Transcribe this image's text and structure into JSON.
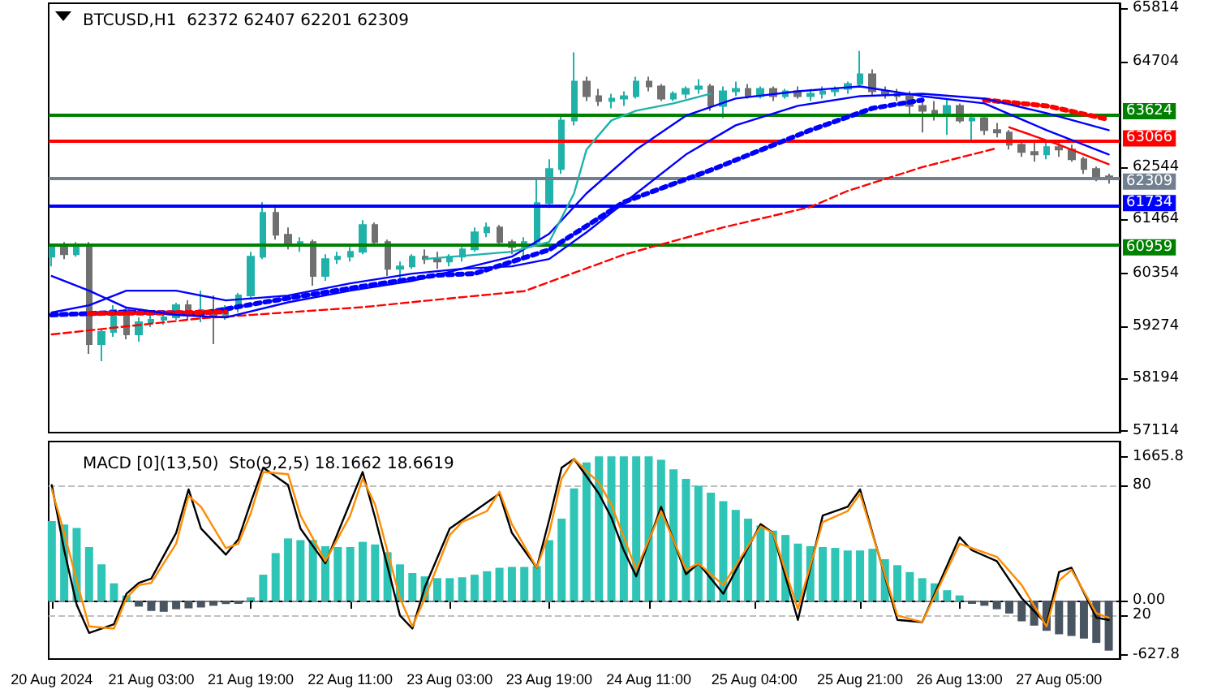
{
  "chart_data": [
    {
      "type": "candlestick",
      "title": "BTCUSD,H1  62372 62407 62201 62309",
      "marker": "none",
      "tick_labels": "y",
      "xlim": [
        "2024-08-20T10:30",
        "2024-08-27T14:45"
      ],
      "ylim": [
        57080,
        65910
      ],
      "yticks": [
        57114,
        58194,
        59274,
        60354,
        61464,
        62544,
        64704,
        65814
      ],
      "x": [
        "2024-08-20T11:00",
        "2024-08-20T13:00",
        "2024-08-20T15:00",
        "2024-08-20T17:00",
        "2024-08-20T19:00",
        "2024-08-20T21:00",
        "2024-08-20T23:00",
        "2024-08-21T01:00",
        "2024-08-21T03:00",
        "2024-08-21T05:00",
        "2024-08-21T07:00",
        "2024-08-21T09:00",
        "2024-08-21T11:00",
        "2024-08-21T13:00",
        "2024-08-21T15:00",
        "2024-08-21T17:00",
        "2024-08-21T19:00",
        "2024-08-21T21:00",
        "2024-08-21T23:00",
        "2024-08-22T01:00",
        "2024-08-22T03:00",
        "2024-08-22T05:00",
        "2024-08-22T07:00",
        "2024-08-22T09:00",
        "2024-08-22T11:00",
        "2024-08-22T13:00",
        "2024-08-22T15:00",
        "2024-08-22T17:00",
        "2024-08-22T19:00",
        "2024-08-22T21:00",
        "2024-08-22T23:00",
        "2024-08-23T01:00",
        "2024-08-23T03:00",
        "2024-08-23T05:00",
        "2024-08-23T07:00",
        "2024-08-23T09:00",
        "2024-08-23T11:00",
        "2024-08-23T13:00",
        "2024-08-23T15:00",
        "2024-08-23T17:00",
        "2024-08-23T19:00",
        "2024-08-23T21:00",
        "2024-08-23T23:00",
        "2024-08-24T01:00",
        "2024-08-24T03:00",
        "2024-08-24T05:00",
        "2024-08-24T07:00",
        "2024-08-24T09:00",
        "2024-08-24T11:00",
        "2024-08-24T13:00",
        "2024-08-24T15:00",
        "2024-08-24T17:00",
        "2024-08-24T19:00",
        "2024-08-24T21:00",
        "2024-08-24T23:00",
        "2024-08-25T01:00",
        "2024-08-25T03:00",
        "2024-08-25T05:00",
        "2024-08-25T07:00",
        "2024-08-25T09:00",
        "2024-08-25T11:00",
        "2024-08-25T13:00",
        "2024-08-25T15:00",
        "2024-08-25T17:00",
        "2024-08-25T19:00",
        "2024-08-25T21:00",
        "2024-08-25T23:00",
        "2024-08-26T01:00",
        "2024-08-26T03:00",
        "2024-08-26T05:00",
        "2024-08-26T07:00",
        "2024-08-26T09:00",
        "2024-08-26T11:00",
        "2024-08-26T13:00",
        "2024-08-26T15:00",
        "2024-08-26T17:00",
        "2024-08-26T19:00",
        "2024-08-26T21:00",
        "2024-08-26T23:00",
        "2024-08-27T01:00",
        "2024-08-27T03:00",
        "2024-08-27T05:00",
        "2024-08-27T07:00",
        "2024-08-27T09:00",
        "2024-08-27T11:00",
        "2024-08-27T13:00"
      ],
      "ohlc": [
        [
          60700,
          60950,
          60500,
          60900
        ],
        [
          60900,
          61000,
          60650,
          60750
        ],
        [
          60750,
          61000,
          60700,
          60950
        ],
        [
          60950,
          61000,
          58700,
          58900
        ],
        [
          58900,
          59200,
          58550,
          59150
        ],
        [
          59150,
          59700,
          59050,
          59600
        ],
        [
          59600,
          59650,
          59000,
          59100
        ],
        [
          59100,
          59450,
          58950,
          59350
        ],
        [
          59350,
          59500,
          59250,
          59400
        ],
        [
          59400,
          59550,
          59300,
          59450
        ],
        [
          59450,
          59750,
          59400,
          59700
        ],
        [
          59700,
          59800,
          59400,
          59500
        ],
        [
          59500,
          60000,
          59350,
          59600
        ],
        [
          59600,
          59900,
          58900,
          59450
        ],
        [
          59450,
          59700,
          59400,
          59650
        ],
        [
          59650,
          59950,
          59550,
          59900
        ],
        [
          59900,
          60800,
          59850,
          60700
        ],
        [
          60700,
          61820,
          60650,
          61600
        ],
        [
          61600,
          61700,
          61050,
          61150
        ],
        [
          61150,
          61300,
          60850,
          60950
        ],
        [
          60950,
          61100,
          60800,
          61000
        ],
        [
          61000,
          61050,
          60100,
          60300
        ],
        [
          60300,
          60750,
          60200,
          60650
        ],
        [
          60650,
          60800,
          60550,
          60700
        ],
        [
          60700,
          60900,
          60600,
          60800
        ],
        [
          60800,
          61450,
          60750,
          61350
        ],
        [
          61350,
          61400,
          60950,
          61000
        ],
        [
          61000,
          61050,
          60300,
          60450
        ],
        [
          60450,
          60600,
          60200,
          60500
        ],
        [
          60500,
          60750,
          60450,
          60700
        ],
        [
          60700,
          60850,
          60550,
          60650
        ],
        [
          60650,
          60800,
          60450,
          60600
        ],
        [
          60600,
          60750,
          60500,
          60700
        ],
        [
          60700,
          60900,
          60600,
          60850
        ],
        [
          60850,
          61300,
          60800,
          61200
        ],
        [
          61200,
          61400,
          61100,
          61300
        ],
        [
          61300,
          61350,
          60950,
          61000
        ],
        [
          61000,
          61050,
          60750,
          60900
        ],
        [
          60900,
          61100,
          60700,
          61000
        ],
        [
          61000,
          62340,
          60950,
          61800
        ],
        [
          61800,
          62700,
          61700,
          62500
        ],
        [
          62500,
          63600,
          62400,
          63500
        ],
        [
          63500,
          64900,
          63400,
          64300
        ],
        [
          64300,
          64400,
          63900,
          64000
        ],
        [
          64000,
          64150,
          63800,
          63900
        ],
        [
          63900,
          64050,
          63750,
          63950
        ],
        [
          63950,
          64100,
          63800,
          64000
        ],
        [
          64000,
          64400,
          63950,
          64300
        ],
        [
          64300,
          64400,
          64100,
          64200
        ],
        [
          64200,
          64250,
          63900,
          63950
        ],
        [
          63950,
          64100,
          63900,
          64050
        ],
        [
          64050,
          64200,
          63950,
          64150
        ],
        [
          64150,
          64350,
          64050,
          64200
        ],
        [
          64200,
          64250,
          63700,
          63800
        ],
        [
          63800,
          64200,
          63550,
          64100
        ],
        [
          64100,
          64300,
          64000,
          64150
        ],
        [
          64150,
          64250,
          63950,
          64000
        ],
        [
          64000,
          64200,
          63950,
          64150
        ],
        [
          64150,
          64200,
          63900,
          64000
        ],
        [
          64000,
          64150,
          63950,
          64100
        ],
        [
          64100,
          64200,
          63950,
          64000
        ],
        [
          64000,
          64150,
          63900,
          64050
        ],
        [
          64050,
          64200,
          63950,
          64100
        ],
        [
          64100,
          64200,
          64000,
          64150
        ],
        [
          64150,
          64300,
          64050,
          64250
        ],
        [
          64250,
          64930,
          64200,
          64450
        ],
        [
          64450,
          64550,
          64000,
          64100
        ],
        [
          64100,
          64200,
          63950,
          64050
        ],
        [
          64050,
          64150,
          63900,
          64000
        ],
        [
          64000,
          64100,
          63600,
          63800
        ],
        [
          63800,
          63950,
          63250,
          63700
        ],
        [
          63700,
          63900,
          63500,
          63650
        ],
        [
          63650,
          63950,
          63200,
          63800
        ],
        [
          63800,
          63850,
          63450,
          63500
        ],
        [
          63500,
          63650,
          63100,
          63550
        ],
        [
          63550,
          63600,
          63200,
          63300
        ],
        [
          63300,
          63450,
          63150,
          63250
        ],
        [
          63250,
          63300,
          62900,
          63000
        ],
        [
          63000,
          63100,
          62750,
          62850
        ],
        [
          62850,
          63050,
          62650,
          62800
        ],
        [
          62800,
          63100,
          62700,
          62950
        ],
        [
          62950,
          63050,
          62750,
          62900
        ],
        [
          62900,
          63000,
          62650,
          62700
        ],
        [
          62700,
          62750,
          62400,
          62500
        ],
        [
          62500,
          62550,
          62250,
          62350
        ],
        [
          62350,
          62407,
          62201,
          62309
        ]
      ],
      "colors": [
        "#20b2aa",
        "#707070",
        "#20b2aa",
        "#707070",
        "#20b2aa",
        "#20b2aa",
        "#707070",
        "#20b2aa",
        "#20b2aa",
        "#20b2aa",
        "#20b2aa",
        "#707070",
        "#20b2aa",
        "#707070",
        "#20b2aa",
        "#20b2aa",
        "#20b2aa",
        "#20b2aa",
        "#707070",
        "#707070",
        "#20b2aa",
        "#707070",
        "#20b2aa",
        "#20b2aa",
        "#20b2aa",
        "#20b2aa",
        "#707070",
        "#707070",
        "#20b2aa",
        "#20b2aa",
        "#707070",
        "#707070",
        "#20b2aa",
        "#20b2aa",
        "#20b2aa",
        "#20b2aa",
        "#707070",
        "#707070",
        "#20b2aa",
        "#20b2aa",
        "#20b2aa",
        "#20b2aa",
        "#20b2aa",
        "#707070",
        "#707070",
        "#20b2aa",
        "#20b2aa",
        "#20b2aa",
        "#707070",
        "#707070",
        "#20b2aa",
        "#20b2aa",
        "#20b2aa",
        "#707070",
        "#20b2aa",
        "#20b2aa",
        "#707070",
        "#20b2aa",
        "#707070",
        "#20b2aa",
        "#707070",
        "#20b2aa",
        "#20b2aa",
        "#20b2aa",
        "#20b2aa",
        "#20b2aa",
        "#707070",
        "#707070",
        "#707070",
        "#707070",
        "#707070",
        "#707070",
        "#20b2aa",
        "#707070",
        "#20b2aa",
        "#707070",
        "#707070",
        "#707070",
        "#707070",
        "#707070",
        "#20b2aa",
        "#707070",
        "#707070",
        "#707070",
        "#707070",
        "#707070"
      ],
      "series": [
        {
          "type": "line",
          "color": "#0000ff",
          "line_style": "dotted",
          "x": [
            "2024-08-20T11:00",
            "2024-08-20T23:00",
            "2024-08-21T11:00",
            "2024-08-21T21:00",
            "2024-08-22T13:00",
            "2024-08-23T01:00",
            "2024-08-23T07:00",
            "2024-08-23T19:00",
            "2024-08-24T07:00",
            "2024-08-24T21:00",
            "2024-08-25T13:00",
            "2024-08-25T23:00",
            "2024-08-26T07:00"
          ],
          "values": [
            59500,
            59560,
            59530,
            59760,
            60090,
            60320,
            60350,
            60840,
            61820,
            62480,
            63300,
            63750,
            63920
          ]
        },
        {
          "type": "line",
          "color": "#ff0000",
          "line_style": "dashed",
          "x": [
            "2024-08-20T11:00",
            "2024-08-21T11:00",
            "2024-08-22T13:00",
            "2024-08-22T23:00",
            "2024-08-23T15:00",
            "2024-08-24T07:00",
            "2024-08-24T23:00",
            "2024-08-25T13:00",
            "2024-08-25T19:00",
            "2024-08-26T07:00",
            "2024-08-26T19:00"
          ],
          "values": [
            59100,
            59430,
            59660,
            59790,
            59990,
            60740,
            61300,
            61720,
            62050,
            62540,
            62930
          ]
        },
        {
          "type": "line",
          "color": "#ff0000",
          "line_style": "dotted",
          "x": [
            "2024-08-20T17:00",
            "2024-08-21T03:00",
            "2024-08-21T15:00",
            "2024-08-21T17:00",
            "2024-08-26T17:00",
            "2024-08-27T03:00",
            "2024-08-27T13:00"
          ],
          "values": [
            59530,
            59540,
            59560,
            null,
            63920,
            63800,
            63520
          ]
        },
        {
          "type": "line",
          "color": "#0000ff",
          "line_style": "solid",
          "x": [
            "2024-08-20T11:00",
            "2024-08-20T17:00",
            "2024-08-20T23:00",
            "2024-08-21T07:00",
            "2024-08-21T15:00",
            "2024-08-22T01:00",
            "2024-08-22T11:00",
            "2024-08-22T21:00",
            "2024-08-23T05:00",
            "2024-08-23T13:00",
            "2024-08-23T19:00",
            "2024-08-24T01:00",
            "2024-08-24T09:00",
            "2024-08-24T17:00",
            "2024-08-25T01:00",
            "2024-08-25T11:00",
            "2024-08-25T21:00",
            "2024-08-26T07:00",
            "2024-08-26T17:00",
            "2024-08-27T03:00",
            "2024-08-27T13:00"
          ],
          "values": [
            60300,
            60000,
            59650,
            59500,
            59450,
            59760,
            60000,
            60200,
            60450,
            60700,
            61170,
            62000,
            62900,
            63600,
            63950,
            64100,
            64200,
            64000,
            63850,
            63300,
            62800
          ]
        },
        {
          "type": "line",
          "color": "#0000ff",
          "line_style": "solid",
          "x": [
            "2024-08-20T11:00",
            "2024-08-20T17:00",
            "2024-08-20T23:00",
            "2024-08-21T07:00",
            "2024-08-21T15:00",
            "2024-08-22T01:00",
            "2024-08-22T11:00",
            "2024-08-22T21:00",
            "2024-08-23T05:00",
            "2024-08-23T13:00",
            "2024-08-23T19:00",
            "2024-08-24T01:00",
            "2024-08-24T09:00",
            "2024-08-24T17:00",
            "2024-08-25T01:00",
            "2024-08-25T11:00",
            "2024-08-25T21:00",
            "2024-08-26T07:00",
            "2024-08-26T17:00",
            "2024-08-27T03:00",
            "2024-08-27T13:00"
          ],
          "values": [
            59550,
            59700,
            60000,
            60000,
            59800,
            59900,
            60150,
            60350,
            60450,
            60500,
            60650,
            61200,
            62000,
            62800,
            63400,
            63800,
            64000,
            64050,
            63950,
            63650,
            63300
          ]
        },
        {
          "type": "line",
          "color": "#20b2aa",
          "line_style": "solid",
          "x": [
            "2024-08-22T23:00",
            "2024-08-23T13:00",
            "2024-08-23T19:00",
            "2024-08-23T23:00",
            "2024-08-24T01:00",
            "2024-08-24T05:00",
            "2024-08-24T09:00",
            "2024-08-24T15:00",
            "2024-08-24T21:00"
          ],
          "values": [
            60650,
            60800,
            61000,
            62000,
            62900,
            63500,
            63700,
            63850,
            64050
          ]
        },
        {
          "type": "line",
          "color": "#ff0000",
          "line_style": "solid",
          "x": [
            "2024-08-26T21:00",
            "2024-08-27T05:00",
            "2024-08-27T13:00"
          ],
          "values": [
            63360,
            63000,
            62600
          ]
        }
      ],
      "ref_lines": [
        {
          "axis": "y",
          "value": 63624,
          "label": "63624",
          "color": "#008000"
        },
        {
          "axis": "y",
          "value": 63066,
          "label": "63066",
          "color": "#ff0000"
        },
        {
          "axis": "y",
          "value": 62309,
          "label": "62309",
          "color": "#708090"
        },
        {
          "axis": "y",
          "value": 61734,
          "label": "61734",
          "color": "#0000ff"
        },
        {
          "axis": "y",
          "value": 60959,
          "label": "60959",
          "color": "#008000"
        }
      ]
    },
    {
      "type": "bar",
      "title": "MACD [0](13,50)  Sto(9,2,5) 18.1662 18.6619",
      "marker": "none",
      "xlim": [
        "2024-08-20T10:30",
        "2024-08-27T14:45"
      ],
      "xticks": [
        {
          "value": "2024-08-20T11:00",
          "label": "20 Aug 2024"
        },
        {
          "value": "2024-08-21T03:00",
          "label": "21 Aug 03:00"
        },
        {
          "value": "2024-08-21T19:00",
          "label": "21 Aug 19:00"
        },
        {
          "value": "2024-08-22T11:00",
          "label": "22 Aug 11:00"
        },
        {
          "value": "2024-08-23T03:00",
          "label": "23 Aug 03:00"
        },
        {
          "value": "2024-08-23T19:00",
          "label": "23 Aug 19:00"
        },
        {
          "value": "2024-08-24T11:00",
          "label": "24 Aug 11:00"
        },
        {
          "value": "2024-08-25T04:00",
          "label": "25 Aug 04:00"
        },
        {
          "value": "2024-08-25T21:00",
          "label": "25 Aug 21:00"
        },
        {
          "value": "2024-08-26T13:00",
          "label": "26 Aug 13:00"
        },
        {
          "value": "2024-08-27T05:00",
          "label": "27 Aug 05:00"
        }
      ],
      "ylim": [
        -677,
        1842
      ],
      "yticks": [
        1665.8,
        {
          "value": 0,
          "label": "0.00"
        },
        -627.8
      ],
      "y2lim": [
        0,
        100
      ],
      "y2ticks": [
        80,
        20
      ],
      "x": [
        "2024-08-20T11:00",
        "2024-08-20T13:00",
        "2024-08-20T15:00",
        "2024-08-20T17:00",
        "2024-08-20T19:00",
        "2024-08-20T21:00",
        "2024-08-20T23:00",
        "2024-08-21T01:00",
        "2024-08-21T03:00",
        "2024-08-21T05:00",
        "2024-08-21T07:00",
        "2024-08-21T09:00",
        "2024-08-21T11:00",
        "2024-08-21T13:00",
        "2024-08-21T15:00",
        "2024-08-21T17:00",
        "2024-08-21T19:00",
        "2024-08-21T21:00",
        "2024-08-21T23:00",
        "2024-08-22T01:00",
        "2024-08-22T03:00",
        "2024-08-22T05:00",
        "2024-08-22T07:00",
        "2024-08-22T09:00",
        "2024-08-22T11:00",
        "2024-08-22T13:00",
        "2024-08-22T15:00",
        "2024-08-22T17:00",
        "2024-08-22T19:00",
        "2024-08-22T21:00",
        "2024-08-22T23:00",
        "2024-08-23T01:00",
        "2024-08-23T03:00",
        "2024-08-23T05:00",
        "2024-08-23T07:00",
        "2024-08-23T09:00",
        "2024-08-23T11:00",
        "2024-08-23T13:00",
        "2024-08-23T15:00",
        "2024-08-23T17:00",
        "2024-08-23T19:00",
        "2024-08-23T21:00",
        "2024-08-23T23:00",
        "2024-08-24T01:00",
        "2024-08-24T03:00",
        "2024-08-24T05:00",
        "2024-08-24T07:00",
        "2024-08-24T09:00",
        "2024-08-24T11:00",
        "2024-08-24T13:00",
        "2024-08-24T15:00",
        "2024-08-24T17:00",
        "2024-08-24T19:00",
        "2024-08-24T21:00",
        "2024-08-24T23:00",
        "2024-08-25T01:00",
        "2024-08-25T03:00",
        "2024-08-25T05:00",
        "2024-08-25T07:00",
        "2024-08-25T09:00",
        "2024-08-25T11:00",
        "2024-08-25T13:00",
        "2024-08-25T15:00",
        "2024-08-25T17:00",
        "2024-08-25T19:00",
        "2024-08-25T21:00",
        "2024-08-25T23:00",
        "2024-08-26T01:00",
        "2024-08-26T03:00",
        "2024-08-26T05:00",
        "2024-08-26T07:00",
        "2024-08-26T09:00",
        "2024-08-26T11:00",
        "2024-08-26T13:00",
        "2024-08-26T15:00",
        "2024-08-26T17:00",
        "2024-08-26T19:00",
        "2024-08-26T21:00",
        "2024-08-26T23:00",
        "2024-08-27T01:00",
        "2024-08-27T03:00",
        "2024-08-27T05:00",
        "2024-08-27T07:00",
        "2024-08-27T09:00",
        "2024-08-27T11:00",
        "2024-08-27T13:00"
      ],
      "values": [
        920,
        880,
        840,
        620,
        420,
        200,
        60,
        -70,
        -120,
        -130,
        -100,
        -90,
        -80,
        -60,
        -40,
        -20,
        30,
        300,
        550,
        720,
        700,
        700,
        630,
        620,
        620,
        680,
        650,
        560,
        420,
        320,
        280,
        260,
        260,
        270,
        300,
        340,
        380,
        390,
        390,
        400,
        700,
        950,
        1300,
        1600,
        1670,
        1670,
        1670,
        1670,
        1670,
        1630,
        1520,
        1410,
        1330,
        1250,
        1150,
        1050,
        950,
        870,
        810,
        760,
        660,
        630,
        620,
        610,
        580,
        580,
        600,
        480,
        410,
        330,
        260,
        200,
        120,
        60,
        -10,
        -60,
        -100,
        -150,
        -240,
        -290,
        -350,
        -390,
        -410,
        -440,
        -490,
        -580
      ],
      "colors": [
        "#2ec4b6",
        "#2ec4b6",
        "#2ec4b6",
        "#2ec4b6",
        "#2ec4b6",
        "#2ec4b6",
        "#2ec4b6",
        "#4a5562",
        "#4a5562",
        "#4a5562",
        "#4a5562",
        "#4a5562",
        "#4a5562",
        "#4a5562",
        "#4a5562",
        "#4a5562",
        "#2ec4b6",
        "#2ec4b6",
        "#2ec4b6",
        "#2ec4b6",
        "#2ec4b6",
        "#2ec4b6",
        "#2ec4b6",
        "#2ec4b6",
        "#2ec4b6",
        "#2ec4b6",
        "#2ec4b6",
        "#2ec4b6",
        "#2ec4b6",
        "#2ec4b6",
        "#2ec4b6",
        "#2ec4b6",
        "#2ec4b6",
        "#2ec4b6",
        "#2ec4b6",
        "#2ec4b6",
        "#2ec4b6",
        "#2ec4b6",
        "#2ec4b6",
        "#2ec4b6",
        "#2ec4b6",
        "#2ec4b6",
        "#2ec4b6",
        "#2ec4b6",
        "#2ec4b6",
        "#2ec4b6",
        "#2ec4b6",
        "#2ec4b6",
        "#2ec4b6",
        "#2ec4b6",
        "#2ec4b6",
        "#2ec4b6",
        "#2ec4b6",
        "#2ec4b6",
        "#2ec4b6",
        "#2ec4b6",
        "#2ec4b6",
        "#2ec4b6",
        "#2ec4b6",
        "#2ec4b6",
        "#2ec4b6",
        "#2ec4b6",
        "#2ec4b6",
        "#2ec4b6",
        "#2ec4b6",
        "#2ec4b6",
        "#2ec4b6",
        "#2ec4b6",
        "#2ec4b6",
        "#2ec4b6",
        "#2ec4b6",
        "#2ec4b6",
        "#2ec4b6",
        "#2ec4b6",
        "#4a5562",
        "#4a5562",
        "#4a5562",
        "#4a5562",
        "#4a5562",
        "#4a5562",
        "#4a5562",
        "#4a5562",
        "#4a5562",
        "#4a5562",
        "#4a5562",
        "#4a5562"
      ],
      "series": [
        {
          "type": "line",
          "axis": "y2",
          "color": "#000000",
          "line_style": "solid",
          "x": [
            "2024-08-20T11:00",
            "2024-08-20T13:00",
            "2024-08-20T15:00",
            "2024-08-20T17:00",
            "2024-08-20T21:00",
            "2024-08-20T23:00",
            "2024-08-21T01:00",
            "2024-08-21T03:00",
            "2024-08-21T07:00",
            "2024-08-21T09:00",
            "2024-08-21T11:00",
            "2024-08-21T15:00",
            "2024-08-21T17:00",
            "2024-08-21T19:00",
            "2024-08-21T21:00",
            "2024-08-22T01:00",
            "2024-08-22T03:00",
            "2024-08-22T07:00",
            "2024-08-22T11:00",
            "2024-08-22T13:00",
            "2024-08-22T15:00",
            "2024-08-22T19:00",
            "2024-08-22T21:00",
            "2024-08-22T23:00",
            "2024-08-23T03:00",
            "2024-08-23T05:00",
            "2024-08-23T09:00",
            "2024-08-23T11:00",
            "2024-08-23T13:00",
            "2024-08-23T17:00",
            "2024-08-23T19:00",
            "2024-08-23T21:00",
            "2024-08-23T23:00",
            "2024-08-24T03:00",
            "2024-08-24T05:00",
            "2024-08-24T07:00",
            "2024-08-24T09:00",
            "2024-08-24T13:00",
            "2024-08-24T17:00",
            "2024-08-24T19:00",
            "2024-08-24T23:00",
            "2024-08-25T05:00",
            "2024-08-25T07:00",
            "2024-08-25T11:00",
            "2024-08-25T15:00",
            "2024-08-25T19:00",
            "2024-08-25T21:00",
            "2024-08-26T03:00",
            "2024-08-26T07:00",
            "2024-08-26T13:00",
            "2024-08-26T15:00",
            "2024-08-26T19:00",
            "2024-08-26T23:00",
            "2024-08-27T03:00",
            "2024-08-27T05:00",
            "2024-08-27T07:00",
            "2024-08-27T11:00",
            "2024-08-27T13:00"
          ],
          "values": [
            80,
            50,
            25,
            12,
            16,
            30,
            35,
            37,
            58,
            78,
            60,
            48,
            55,
            72,
            88,
            80,
            60,
            44,
            72,
            86,
            65,
            20,
            14,
            33,
            60,
            64,
            72,
            76,
            58,
            42,
            64,
            88,
            92,
            76,
            65,
            50,
            38,
            70,
            39,
            44,
            30,
            62,
            58,
            18,
            66,
            70,
            78,
            18,
            17,
            56,
            50,
            45,
            28,
            16,
            40,
            42,
            19,
            18
          ]
        },
        {
          "type": "line",
          "axis": "y2",
          "color": "#ff8c00",
          "line_style": "solid",
          "x": [
            "2024-08-20T11:00",
            "2024-08-20T13:00",
            "2024-08-20T15:00",
            "2024-08-20T17:00",
            "2024-08-20T21:00",
            "2024-08-20T23:00",
            "2024-08-21T01:00",
            "2024-08-21T03:00",
            "2024-08-21T07:00",
            "2024-08-21T09:00",
            "2024-08-21T11:00",
            "2024-08-21T15:00",
            "2024-08-21T17:00",
            "2024-08-21T19:00",
            "2024-08-21T21:00",
            "2024-08-22T01:00",
            "2024-08-22T03:00",
            "2024-08-22T07:00",
            "2024-08-22T11:00",
            "2024-08-22T13:00",
            "2024-08-22T15:00",
            "2024-08-22T19:00",
            "2024-08-22T21:00",
            "2024-08-22T23:00",
            "2024-08-23T03:00",
            "2024-08-23T05:00",
            "2024-08-23T09:00",
            "2024-08-23T11:00",
            "2024-08-23T13:00",
            "2024-08-23T17:00",
            "2024-08-23T19:00",
            "2024-08-23T21:00",
            "2024-08-23T23:00",
            "2024-08-24T03:00",
            "2024-08-24T05:00",
            "2024-08-24T07:00",
            "2024-08-24T09:00",
            "2024-08-24T13:00",
            "2024-08-24T17:00",
            "2024-08-24T19:00",
            "2024-08-24T23:00",
            "2024-08-25T05:00",
            "2024-08-25T07:00",
            "2024-08-25T11:00",
            "2024-08-25T15:00",
            "2024-08-25T19:00",
            "2024-08-25T21:00",
            "2024-08-26T03:00",
            "2024-08-26T07:00",
            "2024-08-26T13:00",
            "2024-08-26T15:00",
            "2024-08-26T19:00",
            "2024-08-26T23:00",
            "2024-08-27T03:00",
            "2024-08-27T05:00",
            "2024-08-27T07:00",
            "2024-08-27T11:00",
            "2024-08-27T13:00"
          ],
          "values": [
            78,
            58,
            36,
            15,
            14,
            28,
            34,
            35,
            53,
            75,
            70,
            51,
            53,
            67,
            86,
            85,
            66,
            45,
            66,
            83,
            71,
            28,
            15,
            28,
            57,
            63,
            68,
            77,
            62,
            42,
            58,
            83,
            92,
            81,
            71,
            56,
            41,
            68,
            41,
            44,
            34,
            61,
            58,
            23,
            63,
            68,
            76,
            20,
            17,
            53,
            51,
            47,
            34,
            15,
            36,
            41,
            21,
            19
          ]
        }
      ],
      "ref_lines": [
        {
          "axis": "y",
          "value": 0,
          "color": "#808080",
          "line_style": "dashed"
        },
        {
          "axis": "y2",
          "value": 80,
          "color": "#c0c0c0",
          "line_style": "dashed"
        },
        {
          "axis": "y2",
          "value": 20,
          "color": "#c0c0c0",
          "line_style": "dashed"
        }
      ]
    }
  ]
}
